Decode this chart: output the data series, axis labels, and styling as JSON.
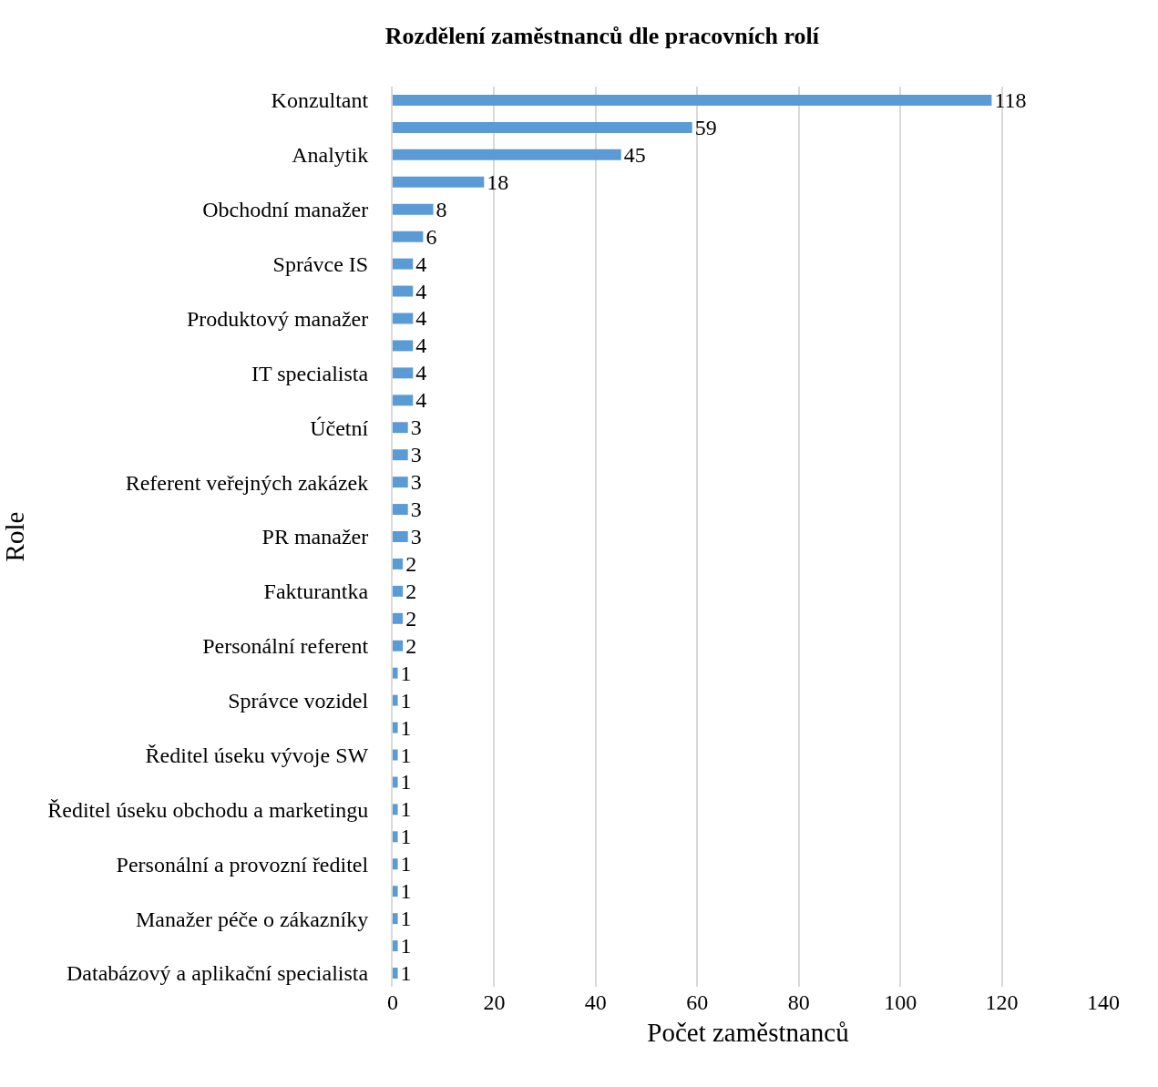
{
  "chart_data": {
    "type": "bar",
    "orientation": "horizontal",
    "title": "Rozdělení zaměstnanců dle pracovních rolí",
    "xlabel": "Počet zaměstnanců",
    "ylabel": "Role",
    "categories": [
      "Konzultant",
      null,
      "Analytik",
      null,
      "Obchodní manažer",
      null,
      "Správce IS",
      null,
      "Produktový manažer",
      null,
      "IT specialista",
      null,
      "Účetní",
      null,
      "Referent veřejných zakázek",
      null,
      "PR manažer",
      null,
      "Fakturantka",
      null,
      "Personální referent",
      null,
      "Správce vozidel",
      null,
      "Ředitel úseku vývoje SW",
      null,
      "Ředitel úseku obchodu a marketingu",
      null,
      "Personální a provozní ředitel",
      null,
      "Manažer péče o zákazníky",
      null,
      "Databázový a aplikační specialista"
    ],
    "values": [
      118,
      59,
      45,
      18,
      8,
      6,
      4,
      4,
      4,
      4,
      4,
      4,
      3,
      3,
      3,
      3,
      3,
      2,
      2,
      2,
      2,
      1,
      1,
      1,
      1,
      1,
      1,
      1,
      1,
      1,
      1,
      1,
      1
    ],
    "color": "#5b9bd5",
    "xlim": [
      0,
      140
    ],
    "xticks": [
      0,
      20,
      40,
      60,
      80,
      100,
      120,
      140
    ],
    "grid": "x",
    "data_labels": true
  }
}
